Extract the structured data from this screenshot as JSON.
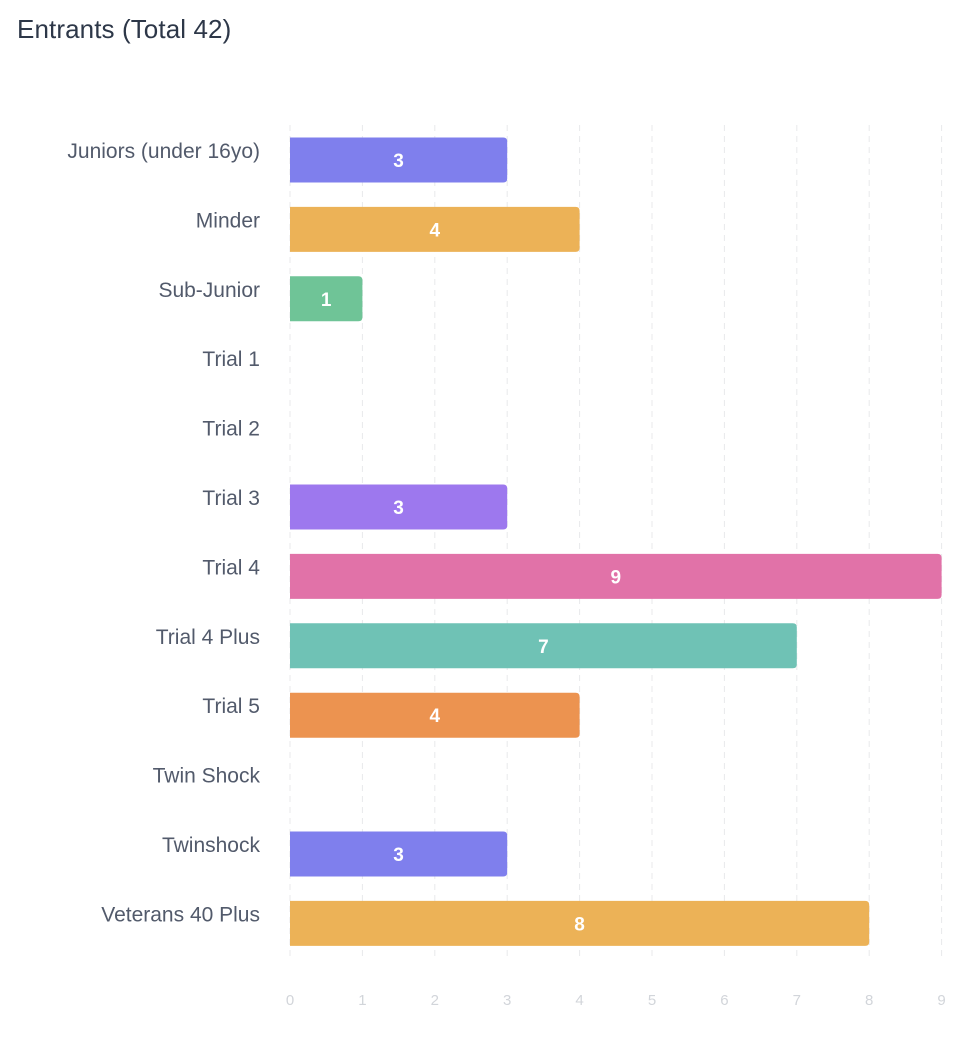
{
  "title": "Entrants (Total 42)",
  "chart_data": {
    "type": "bar",
    "orientation": "horizontal",
    "categories": [
      "Juniors (under 16yo)",
      "Minder",
      "Sub-Junior",
      "Trial 1",
      "Trial 2",
      "Trial 3",
      "Trial 4",
      "Trial 4 Plus",
      "Trial 5",
      "Twin Shock",
      "Twinshock",
      "Veterans 40 Plus"
    ],
    "values": [
      3,
      4,
      1,
      0,
      0,
      3,
      9,
      7,
      4,
      0,
      3,
      8
    ],
    "colors": [
      "#7f7fed",
      "#ecb257",
      "#6fc497",
      "#7f7fed",
      "#ecb257",
      "#9d78ee",
      "#e172a8",
      "#6fc2b5",
      "#ec9350",
      "#7f7fed",
      "#7f7fed",
      "#ecb257"
    ],
    "x_ticks": [
      "0",
      "1",
      "2",
      "3",
      "4",
      "5",
      "6",
      "7",
      "8",
      "9"
    ],
    "xlim": [
      0,
      9
    ],
    "grid": true,
    "data_labels": true
  }
}
